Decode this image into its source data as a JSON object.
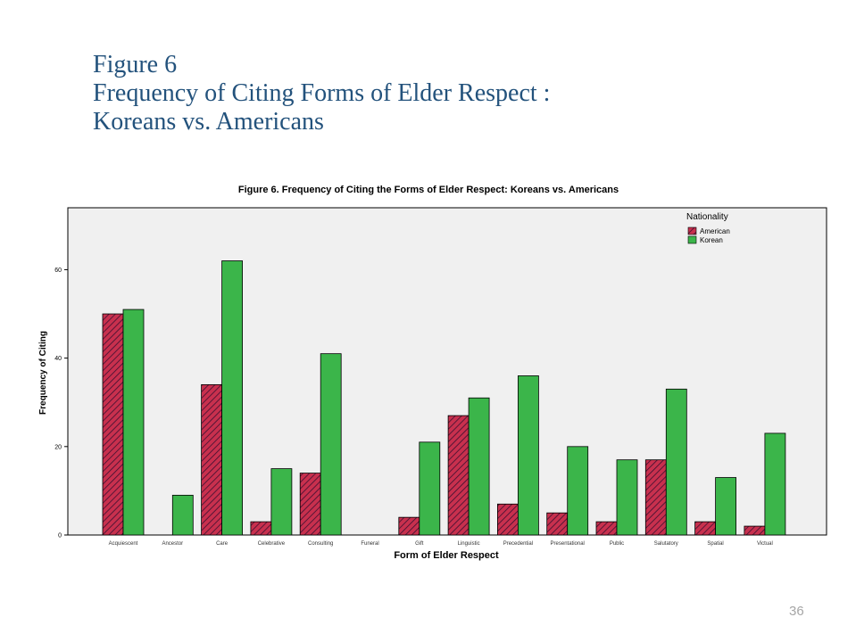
{
  "slide": {
    "title_lines": [
      "Figure 6",
      "Frequency of Citing Forms of Elder Respect :",
      "Koreans vs. Americans"
    ],
    "page_number": "36"
  },
  "chart_data": {
    "type": "bar",
    "title": "Figure 6.  Frequency of Citing the Forms of Elder Respect: Koreans vs. Americans",
    "xlabel": "Form of Elder Respect",
    "ylabel": "Frequency of Citing",
    "categories": [
      "Acquiescent",
      "Ancestor",
      "Care",
      "Celebrative",
      "Consulting",
      "Funeral",
      "Gift",
      "Linguistic",
      "Precedential",
      "Presentational",
      "Public",
      "Salutatory",
      "Spatial",
      "Victual"
    ],
    "series": [
      {
        "name": "American",
        "values": [
          50,
          0,
          34,
          3,
          14,
          0,
          4,
          27,
          7,
          5,
          3,
          17,
          3,
          2
        ],
        "color": "#c8304e",
        "pattern": "diagonal-hatch"
      },
      {
        "name": "Korean",
        "values": [
          51,
          9,
          62,
          15,
          41,
          0,
          21,
          31,
          36,
          20,
          17,
          33,
          13,
          23
        ],
        "color": "#3bb54a",
        "pattern": "solid"
      }
    ],
    "ylim": [
      0,
      74
    ],
    "yticks": [
      0,
      20,
      40,
      60
    ],
    "legend": {
      "title": "Nationality",
      "placement": "top-right"
    },
    "plot_background": "#f0f0f0",
    "grid": false
  }
}
